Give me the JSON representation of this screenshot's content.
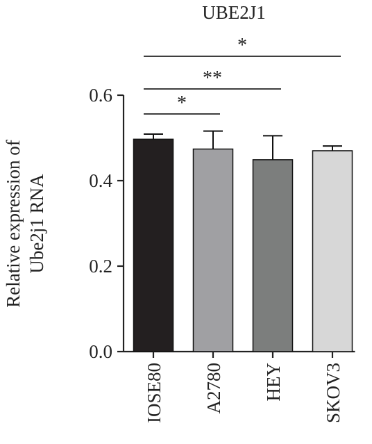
{
  "chart_data": {
    "type": "bar",
    "title": "UBE2J1",
    "ylabel_lines": [
      "Relative expression of",
      "Ube2j1 RNA"
    ],
    "xlabel": "",
    "categories": [
      "IOSE80",
      "A2780",
      "HEY",
      "SKOV3"
    ],
    "values": [
      0.497,
      0.474,
      0.449,
      0.47
    ],
    "errors": [
      0.012,
      0.042,
      0.056,
      0.011
    ],
    "colors": [
      "#231f20",
      "#a0a0a3",
      "#7c7e7d",
      "#d7d7d7"
    ],
    "ylim": [
      0,
      0.6
    ],
    "yticks": [
      0.0,
      0.2,
      0.4,
      0.6
    ],
    "ytick_labels": [
      "0.0",
      "0.2",
      "0.4",
      "0.6"
    ],
    "grid": false,
    "significance": [
      {
        "from": "IOSE80",
        "to": "A2780",
        "label": "*"
      },
      {
        "from": "IOSE80",
        "to": "HEY",
        "label": "**"
      },
      {
        "from": "IOSE80",
        "to": "SKOV3",
        "label": "*"
      }
    ]
  }
}
